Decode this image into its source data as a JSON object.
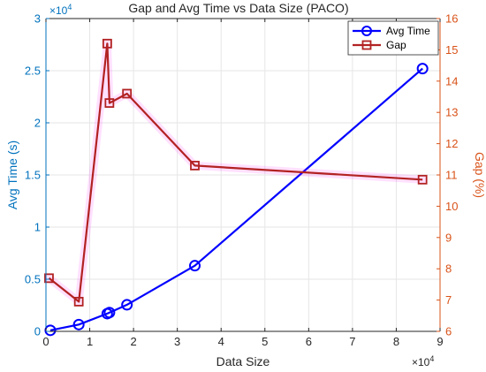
{
  "chart_data": {
    "type": "line",
    "title": "Gap and Avg Time vs Data Size (PACO)",
    "xlabel": "Data Size",
    "x_exponent": "×10",
    "x_exponent_power": "4",
    "xlim": [
      0,
      90000
    ],
    "x_ticks": [
      0,
      10000,
      20000,
      30000,
      40000,
      50000,
      60000,
      70000,
      80000,
      90000
    ],
    "x_tick_labels": [
      "0",
      "1",
      "2",
      "3",
      "4",
      "5",
      "6",
      "7",
      "8",
      "9"
    ],
    "y_left": {
      "label": "Avg Time (s)",
      "exponent": "×10",
      "exponent_power": "4",
      "lim": [
        0,
        30000
      ],
      "ticks": [
        0,
        5000,
        10000,
        15000,
        20000,
        25000,
        30000
      ],
      "tick_labels": [
        "0",
        "0.5",
        "1",
        "1.5",
        "2",
        "2.5",
        "3"
      ],
      "color": "#0072BD"
    },
    "y_right": {
      "label": "Gap (%)",
      "lim": [
        6,
        16
      ],
      "ticks": [
        6,
        7,
        8,
        9,
        10,
        11,
        12,
        13,
        14,
        15,
        16
      ],
      "tick_labels": [
        "6",
        "7",
        "8",
        "9",
        "10",
        "11",
        "12",
        "13",
        "14",
        "15",
        "16"
      ],
      "color": "#D95319"
    },
    "grid": true,
    "legend_position": "top-right",
    "series": [
      {
        "name": "Avg Time",
        "axis": "left",
        "color": "#0000FF",
        "marker": "circle",
        "points": [
          [
            1000,
            100
          ],
          [
            7500,
            650
          ],
          [
            14000,
            1700
          ],
          [
            14500,
            1800
          ],
          [
            18500,
            2550
          ],
          [
            34000,
            6300
          ],
          [
            86000,
            25200
          ]
        ]
      },
      {
        "name": "Gap",
        "axis": "right",
        "color": "#B22222",
        "highlight": "#FF00FF",
        "marker": "square",
        "points": [
          [
            700,
            7.7
          ],
          [
            7500,
            6.95
          ],
          [
            14000,
            15.2
          ],
          [
            14500,
            13.3
          ],
          [
            18500,
            13.6
          ],
          [
            34000,
            11.3
          ],
          [
            86000,
            10.85
          ]
        ]
      }
    ]
  }
}
